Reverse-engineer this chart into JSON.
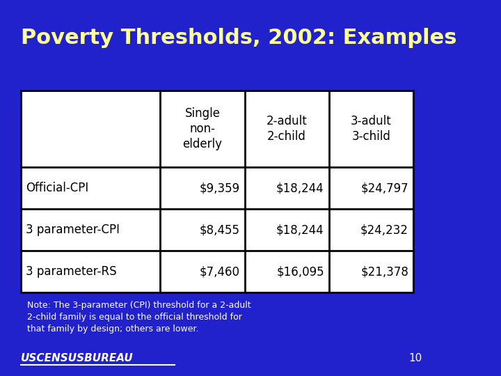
{
  "title": "Poverty Thresholds, 2002: Examples",
  "title_color": "#FFFF99",
  "bg_color": "#2222CC",
  "table_bg": "#FFFFFF",
  "note": "Note: The 3-parameter (CPI) threshold for a 2-adult\n2-child family is equal to the official threshold for\nthat family by design; others are lower.",
  "footer": "USCENSUSBUREAU",
  "slide_number": "10",
  "col_headers": [
    "",
    "Single\nnon-\nelderly",
    "2-adult\n2-child",
    "3-adult\n3-child"
  ],
  "row_labels": [
    "Official-CPI",
    "3 parameter-CPI",
    "3 parameter-RS"
  ],
  "table_data": [
    [
      "$9,359",
      "$18,244",
      "$24,797"
    ],
    [
      "$8,455",
      "$18,244",
      "$24,232"
    ],
    [
      "$7,460",
      "$16,095",
      "$21,378"
    ]
  ],
  "header_bg": "#FFFFFF",
  "cell_bg": "#FFFFFF",
  "border_color": "#000000",
  "text_color": "#000000",
  "note_color": "#FFFFFF",
  "footer_color": "#FFFFFF"
}
